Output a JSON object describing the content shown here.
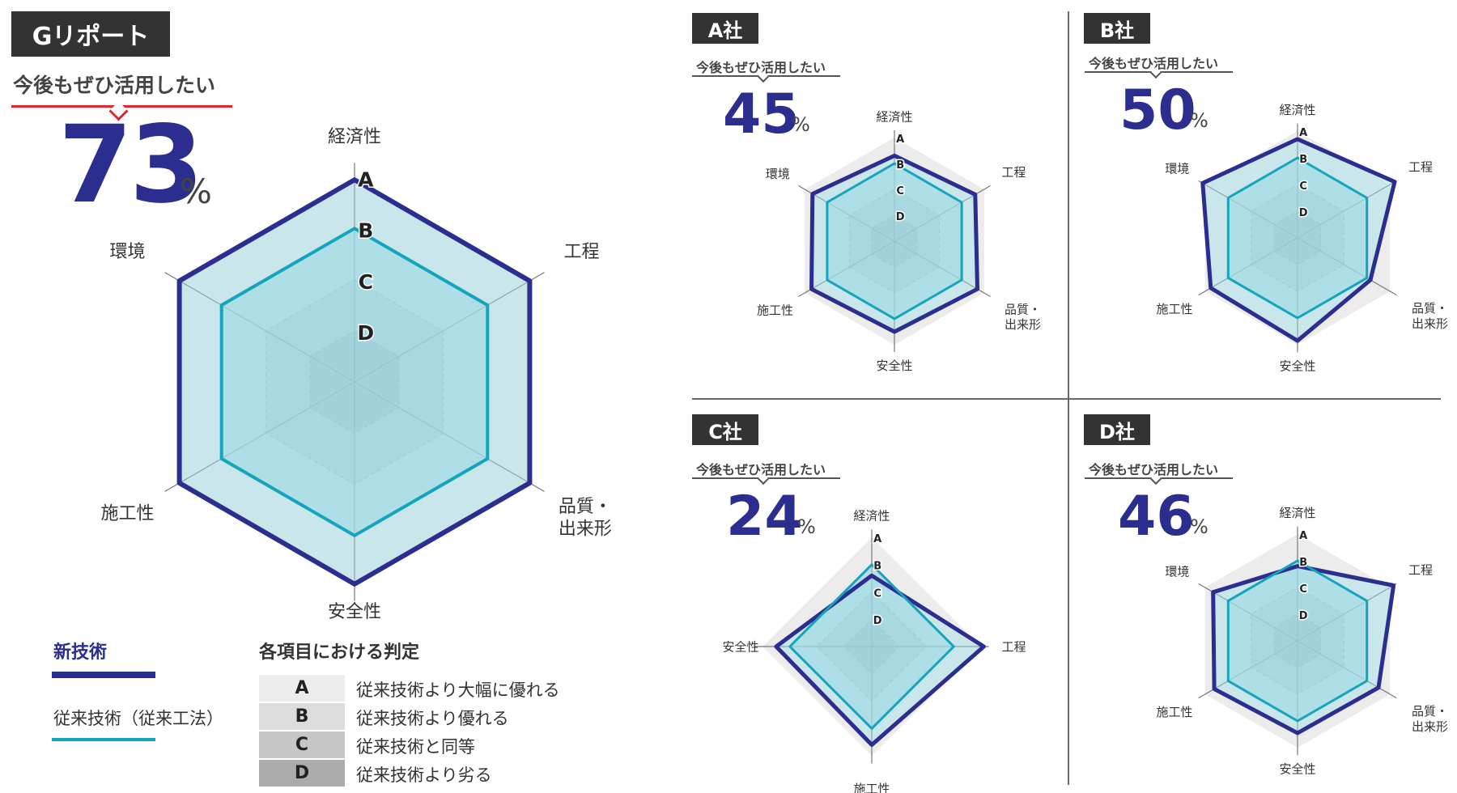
{
  "main": {
    "tag": "Gリポート",
    "want_label": "今後もぜひ活用したい",
    "percent": "73",
    "percent_sign": "%"
  },
  "companies": [
    {
      "tag": "A社",
      "want_label": "今後もぜひ活用したい",
      "percent": "45",
      "percent_sign": "%"
    },
    {
      "tag": "B社",
      "want_label": "今後もぜひ活用したい",
      "percent": "50",
      "percent_sign": "%"
    },
    {
      "tag": "C社",
      "want_label": "今後もぜひ活用したい",
      "percent": "24",
      "percent_sign": "%"
    },
    {
      "tag": "D社",
      "want_label": "今後もぜひ活用したい",
      "percent": "46",
      "percent_sign": "%"
    }
  ],
  "legend": {
    "new_label": "新技術",
    "old_label": "従来技術（従来工法）",
    "grade_title": "各項目における判定",
    "grades": [
      {
        "letter": "A",
        "text": "従来技術より大幅に優れる",
        "color": "#ececec"
      },
      {
        "letter": "B",
        "text": "従来技術より優れる",
        "color": "#dcdcdc"
      },
      {
        "letter": "C",
        "text": "従来技術と同等",
        "color": "#c6c6c6"
      },
      {
        "letter": "D",
        "text": "従来技術より劣る",
        "color": "#ababab"
      }
    ]
  },
  "colors": {
    "new_tech": "#2b2e8e",
    "old_tech": "#14a4bd",
    "fill": "#9fe0ea",
    "accent_red": "#e2262c",
    "tag_bg": "#333333"
  },
  "chart_data": [
    {
      "id": "main",
      "type": "radar",
      "axes": [
        "経済性",
        "工程",
        "品質・出来形",
        "安全性",
        "施工性",
        "環境"
      ],
      "scale": [
        "A",
        "B",
        "C",
        "D"
      ],
      "series": [
        {
          "name": "新技術",
          "values": [
            2.95,
            2.95,
            2.95,
            2.95,
            2.95,
            2.95
          ]
        },
        {
          "name": "従来技術（従来工法）",
          "values": [
            2,
            2,
            2,
            2,
            2,
            2
          ]
        }
      ]
    },
    {
      "id": "A",
      "type": "radar",
      "axes": [
        "経済性",
        "工程",
        "品質・出来形",
        "安全性",
        "施工性",
        "環境"
      ],
      "scale": [
        "A",
        "B",
        "C",
        "D"
      ],
      "series": [
        {
          "name": "新技術",
          "values": [
            2.3,
            2.6,
            2.7,
            2.5,
            2.7,
            2.65
          ]
        },
        {
          "name": "従来技術（従来工法）",
          "values": [
            2,
            2,
            2,
            2,
            2,
            2
          ]
        }
      ]
    },
    {
      "id": "B",
      "type": "radar",
      "axes": [
        "経済性",
        "工程",
        "品質・出来形",
        "安全性",
        "施工性",
        "環境"
      ],
      "scale": [
        "A",
        "B",
        "C",
        "D"
      ],
      "series": [
        {
          "name": "新技術",
          "values": [
            2.7,
            3.2,
            2.15,
            2.85,
            2.75,
            3.1
          ]
        },
        {
          "name": "従来技術（従来工法）",
          "values": [
            2,
            2,
            2,
            2,
            2,
            2
          ]
        }
      ]
    },
    {
      "id": "C",
      "type": "radar",
      "axes": [
        "経済性",
        "工程",
        "施工性",
        "安全性"
      ],
      "scale": [
        "A",
        "B",
        "C",
        "D"
      ],
      "series": [
        {
          "name": "新技術",
          "values": [
            1.6,
            3.1,
            2.6,
            2.5
          ]
        },
        {
          "name": "従来技術（従来工法）",
          "values": [
            2,
            2,
            2,
            2
          ]
        }
      ]
    },
    {
      "id": "D",
      "type": "radar",
      "axes": [
        "経済性",
        "工程",
        "品質・出来形",
        "安全性",
        "施工性",
        "環境"
      ],
      "scale": [
        "A",
        "B",
        "C",
        "D"
      ],
      "series": [
        {
          "name": "新技術",
          "values": [
            1.8,
            3.15,
            2.5,
            2.45,
            2.6,
            2.65
          ]
        },
        {
          "name": "従来技術（従来工法）",
          "values": [
            2,
            2,
            2,
            2,
            2,
            2
          ]
        }
      ]
    }
  ]
}
